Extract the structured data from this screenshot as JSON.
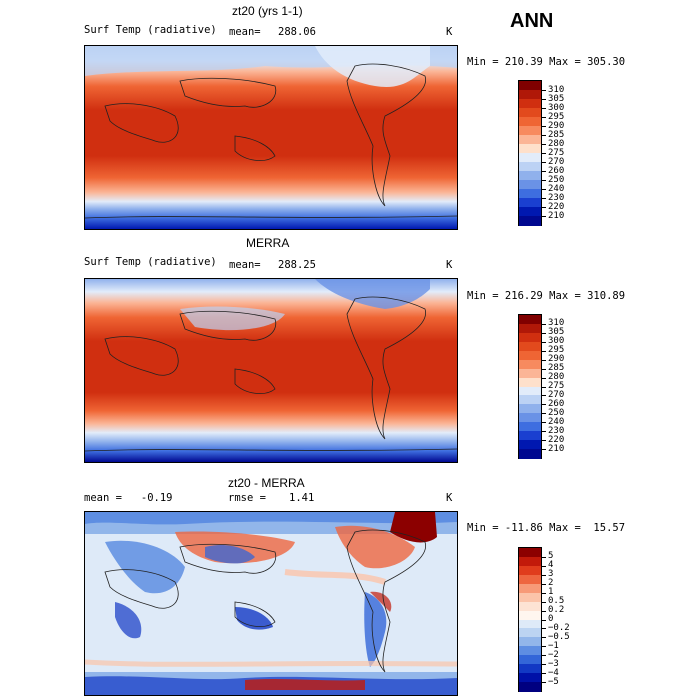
{
  "season": "ANN",
  "panels": [
    {
      "id": "model",
      "title": "zt20 (yrs 1-1)",
      "left_label": "Surf Temp (radiative)",
      "mean_label": "mean=",
      "mean_value": "288.06",
      "units": "K",
      "min_max": "Min = 210.39 Max = 305.30",
      "colorbar": {
        "labels": [
          "310",
          "305",
          "300",
          "295",
          "290",
          "285",
          "280",
          "275",
          "270",
          "260",
          "250",
          "240",
          "230",
          "220",
          "210"
        ],
        "colors": [
          "#800000",
          "#b01808",
          "#d02f10",
          "#e24a1d",
          "#ef6534",
          "#f78a5f",
          "#fbb596",
          "#fee0cb",
          "#e2ecfa",
          "#bcd2f4",
          "#90b1ec",
          "#6a92e6",
          "#3e6ee0",
          "#1a3fd0",
          "#0018b0",
          "#000890"
        ]
      }
    },
    {
      "id": "obs",
      "title": "MERRA",
      "left_label": "Surf Temp (radiative)",
      "mean_label": "mean=",
      "mean_value": "288.25",
      "units": "K",
      "min_max": "Min = 216.29 Max = 310.89",
      "colorbar": {
        "labels": [
          "310",
          "305",
          "300",
          "295",
          "290",
          "285",
          "280",
          "275",
          "270",
          "260",
          "250",
          "240",
          "230",
          "220",
          "210"
        ],
        "colors": [
          "#800000",
          "#b01808",
          "#d02f10",
          "#e24a1d",
          "#ef6534",
          "#f78a5f",
          "#fbb596",
          "#fee0cb",
          "#e2ecfa",
          "#bcd2f4",
          "#90b1ec",
          "#6a92e6",
          "#3e6ee0",
          "#1a3fd0",
          "#0018b0",
          "#000890"
        ]
      }
    },
    {
      "id": "diff",
      "title": "zt20 - MERRA",
      "left_label": "mean =   -0.19",
      "mean_label": "rmse =",
      "mean_value": "1.41",
      "units": "K",
      "min_max": "Min = -11.86 Max =  15.57",
      "colorbar": {
        "labels": [
          "5",
          "4",
          "3",
          "2",
          "1",
          "0.5",
          "0.2",
          "0",
          "−0.2",
          "−0.5",
          "−1",
          "−2",
          "−3",
          "−4",
          "−5"
        ],
        "colors": [
          "#8c0000",
          "#c21a0a",
          "#e03c1c",
          "#ee6640",
          "#f79a78",
          "#fbc4aa",
          "#fde3d4",
          "#fff6ef",
          "#deeaf8",
          "#bcd4f2",
          "#92b6ea",
          "#5e8ee2",
          "#3366d8",
          "#1238c4",
          "#0010a8",
          "#000080"
        ]
      }
    }
  ]
}
